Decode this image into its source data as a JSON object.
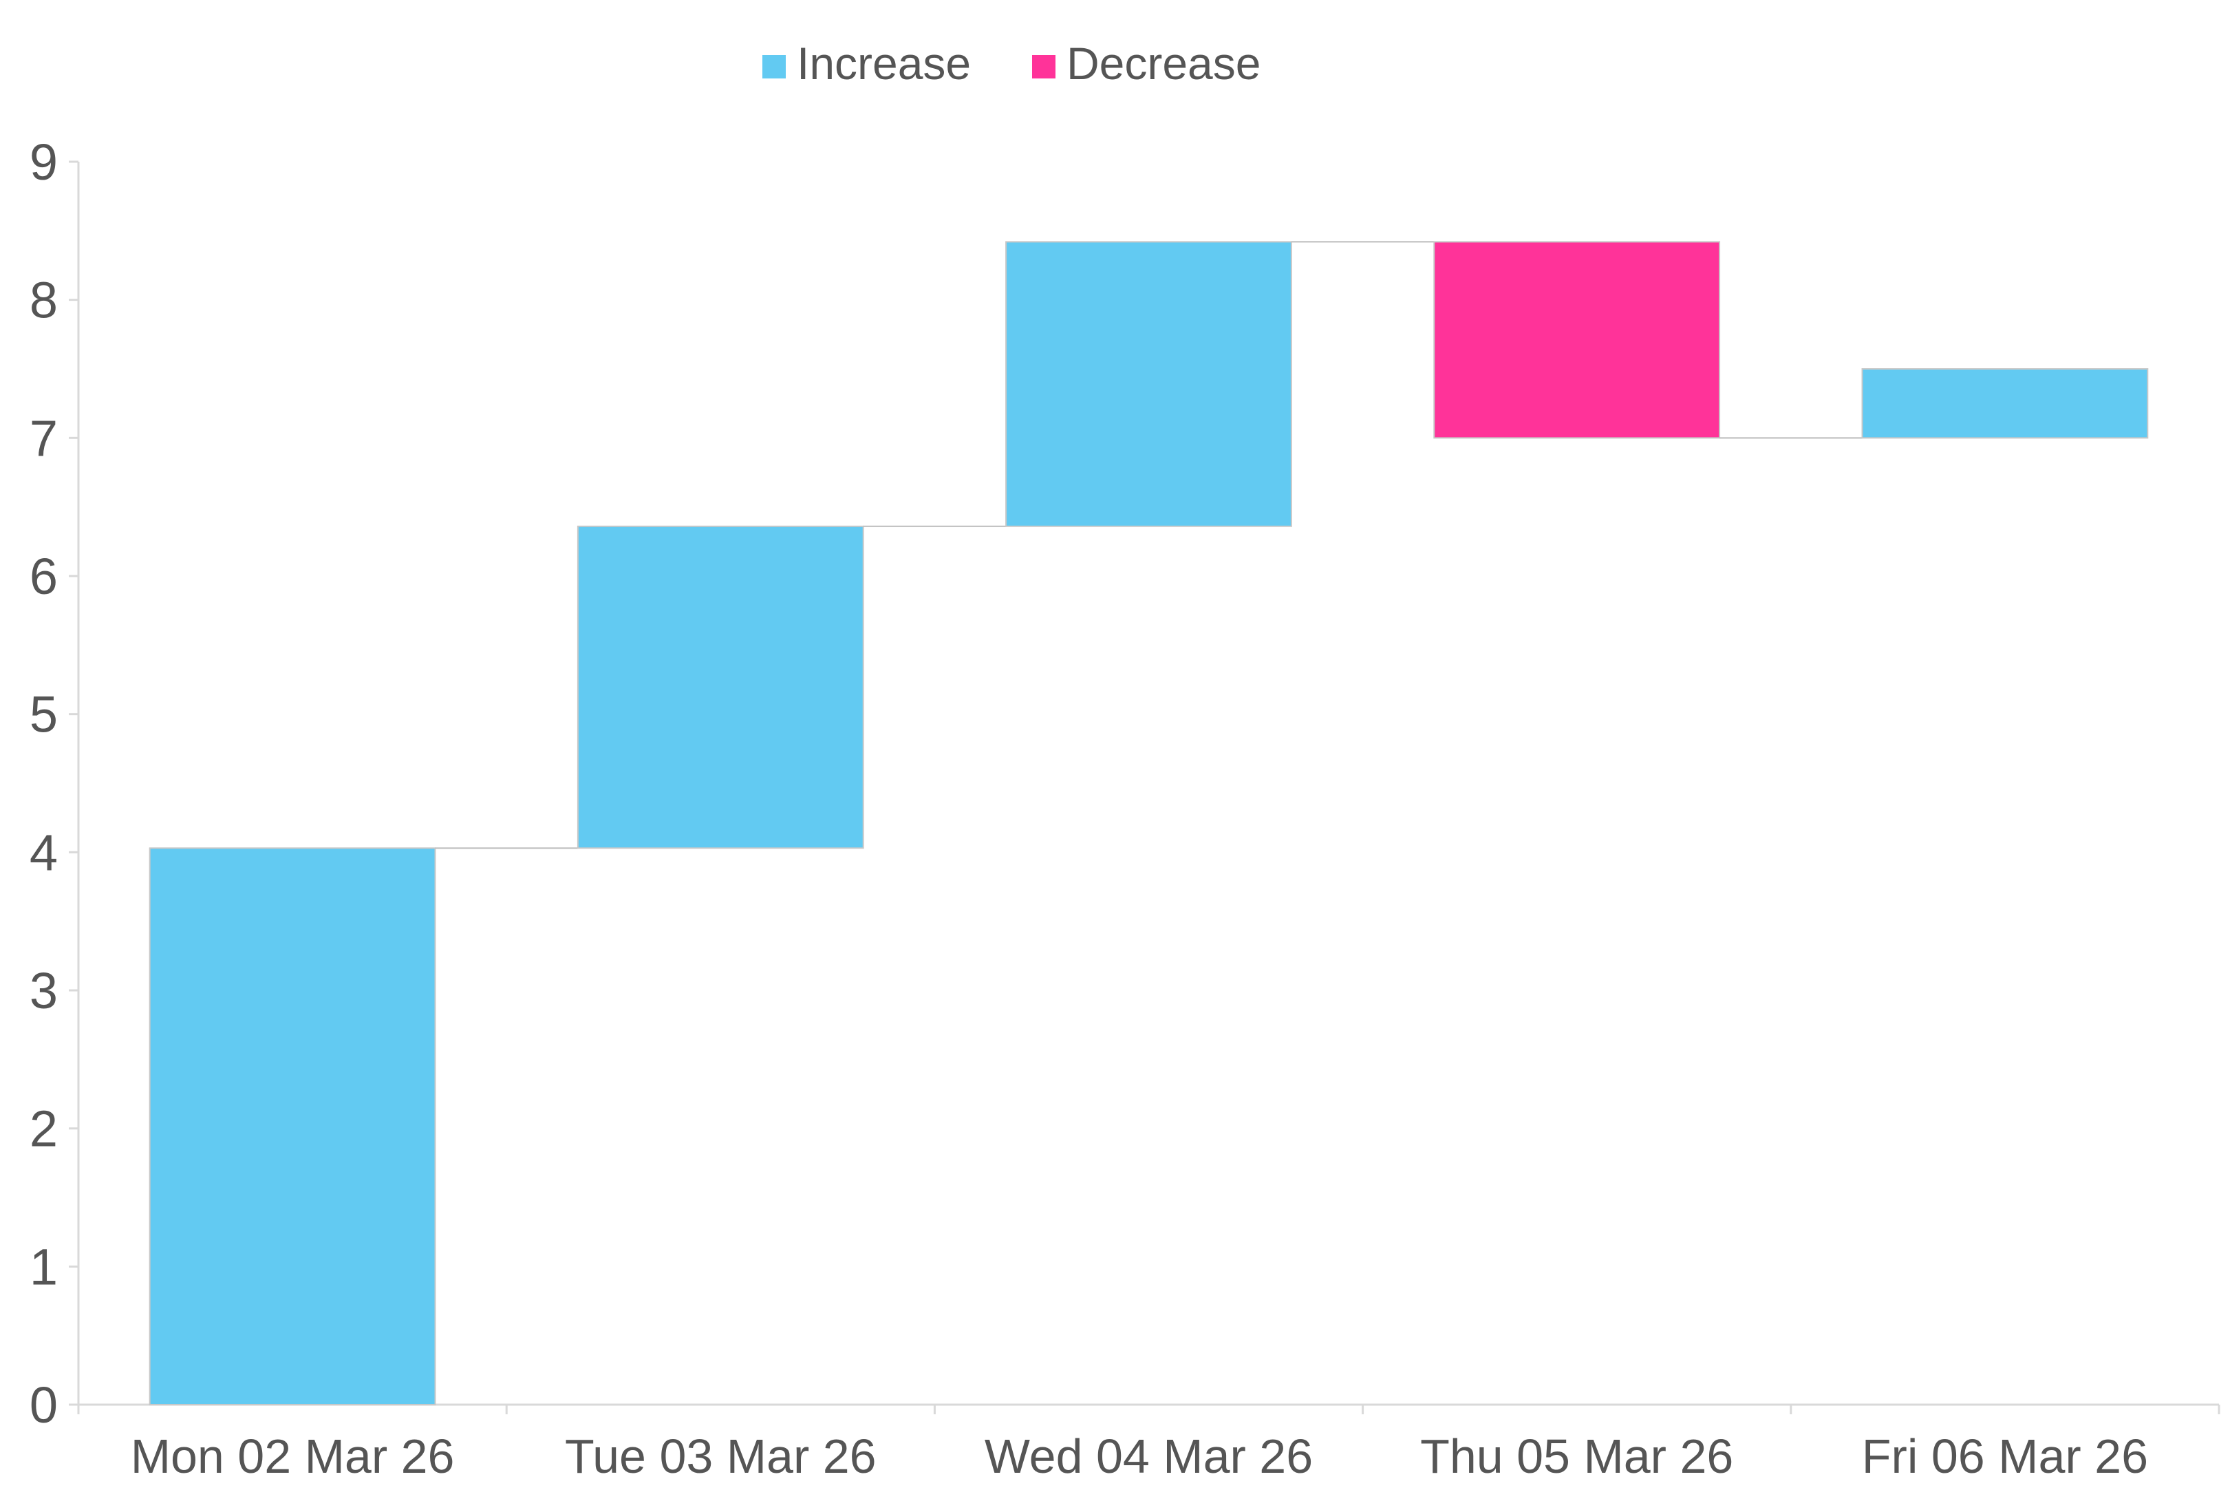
{
  "chart_data": {
    "type": "waterfall",
    "title": "",
    "xlabel": "",
    "ylabel": "",
    "categories": [
      "Mon 02 Mar 26",
      "Tue 03 Mar 26",
      "Wed 04 Mar 26",
      "Thu 05 Mar 26",
      "Fri 06 Mar 26"
    ],
    "changes": [
      4.03,
      2.33,
      2.06,
      -1.42,
      0.5
    ],
    "bars": [
      {
        "category": "Mon 02 Mar 26",
        "start": 0,
        "end": 4.03,
        "kind": "Increase"
      },
      {
        "category": "Tue 03 Mar 26",
        "start": 4.03,
        "end": 6.36,
        "kind": "Increase"
      },
      {
        "category": "Wed 04 Mar 26",
        "start": 6.36,
        "end": 8.42,
        "kind": "Increase"
      },
      {
        "category": "Thu 05 Mar 26",
        "start": 8.42,
        "end": 7.0,
        "kind": "Decrease"
      },
      {
        "category": "Fri 06 Mar 26",
        "start": 7.0,
        "end": 7.5,
        "kind": "Increase"
      }
    ],
    "ylim": [
      0,
      9
    ],
    "yticks": [
      "0",
      "1",
      "2",
      "3",
      "4",
      "5",
      "6",
      "7",
      "8",
      "9"
    ],
    "grid": false,
    "legend": {
      "placement": "top-center",
      "items": [
        {
          "label": "Increase",
          "color": "#62CAF2"
        },
        {
          "label": "Decrease",
          "color": "#FF3399"
        }
      ]
    },
    "colors": {
      "increase": "#62CAF2",
      "decrease": "#FF3399",
      "connector": "#BBBBBB",
      "axis": "#D9D9D9"
    }
  }
}
